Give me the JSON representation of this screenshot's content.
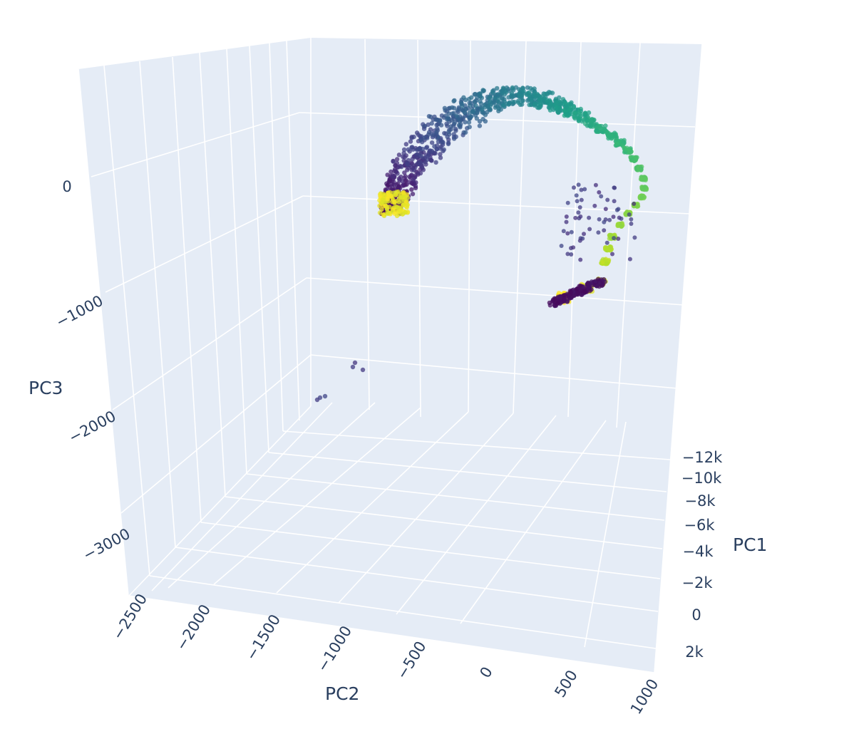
{
  "chart_data": {
    "type": "scatter3d",
    "axes": {
      "x": {
        "title": "PC1",
        "ticks": [
          -12000,
          -10000,
          -8000,
          -6000,
          -4000,
          -2000,
          0,
          2000
        ],
        "tick_labels": [
          "−12k",
          "−10k",
          "−8k",
          "−6k",
          "−4k",
          "−2k",
          "0",
          "2k"
        ]
      },
      "y": {
        "title": "PC2",
        "ticks": [
          -2500,
          -2000,
          -1500,
          -1000,
          -500,
          0,
          500,
          1000
        ],
        "tick_labels": [
          "−2500",
          "−2000",
          "−1500",
          "−1000",
          "−500",
          "0",
          "500",
          "1000"
        ]
      },
      "z": {
        "title": "PC3",
        "ticks": [
          -3000,
          -2000,
          -1000,
          0
        ],
        "tick_labels": [
          "−3000",
          "−2000",
          "−1000",
          "0"
        ]
      }
    },
    "grid": true,
    "legend": false,
    "colorscale": "Viridis",
    "colorscale_colors": [
      "#440154",
      "#482878",
      "#3e4989",
      "#31688e",
      "#26828e",
      "#1f9e89",
      "#35b779",
      "#6ece58",
      "#b5de2b",
      "#fde725"
    ],
    "point_opacity": 0.75,
    "series": [
      {
        "points": [
          [
            1000,
            120,
            -600,
            0.0
          ],
          [
            950,
            300,
            -560,
            0.02
          ],
          [
            850,
            520,
            -500,
            0.04
          ],
          [
            700,
            680,
            -430,
            0.06
          ],
          [
            500,
            720,
            -360,
            0.08
          ],
          [
            250,
            720,
            -300,
            0.1
          ],
          [
            -100,
            760,
            -250,
            0.12
          ],
          [
            -500,
            820,
            -200,
            0.14
          ],
          [
            -1000,
            860,
            -150,
            0.16
          ],
          [
            -1600,
            880,
            -100,
            0.18
          ],
          [
            -2200,
            870,
            -60,
            0.2
          ],
          [
            -2800,
            840,
            -30,
            0.22
          ],
          [
            -3300,
            800,
            0,
            0.24
          ],
          [
            -3700,
            760,
            20,
            0.26
          ],
          [
            -4100,
            720,
            40,
            0.28
          ],
          [
            -4500,
            680,
            60,
            0.3
          ],
          [
            -4900,
            640,
            90,
            0.32
          ],
          [
            -5300,
            600,
            120,
            0.34
          ],
          [
            -5700,
            560,
            160,
            0.36
          ],
          [
            -6100,
            500,
            200,
            0.38
          ],
          [
            -6500,
            420,
            240,
            0.4
          ],
          [
            -6900,
            320,
            270,
            0.42
          ],
          [
            -7300,
            200,
            290,
            0.44
          ],
          [
            -7700,
            60,
            300,
            0.46
          ],
          [
            -8100,
            -100,
            300,
            0.48
          ],
          [
            -8500,
            -280,
            290,
            0.5
          ],
          [
            -8900,
            -460,
            270,
            0.52
          ],
          [
            -9200,
            -640,
            240,
            0.54
          ],
          [
            -9500,
            -820,
            200,
            0.56
          ],
          [
            -9700,
            -1000,
            160,
            0.58
          ],
          [
            -9900,
            -1180,
            110,
            0.6
          ],
          [
            -10000,
            -1350,
            60,
            0.62
          ],
          [
            -10000,
            -1500,
            10,
            0.64
          ],
          [
            -9900,
            -1650,
            -40,
            0.66
          ],
          [
            -9700,
            -1780,
            -80,
            0.68
          ],
          [
            -9400,
            -1900,
            -110,
            0.7
          ],
          [
            -9100,
            -2000,
            -130,
            0.72
          ],
          [
            -8800,
            -2080,
            -150,
            0.74
          ],
          [
            -8500,
            -2140,
            -170,
            0.76
          ],
          [
            -8300,
            -2180,
            -190,
            0.78
          ],
          [
            -8100,
            -2210,
            -210,
            0.8
          ],
          [
            -7900,
            -2230,
            -230,
            0.82
          ],
          [
            -7700,
            -2240,
            -250,
            0.84
          ],
          [
            -7500,
            -2250,
            -270,
            0.86
          ],
          [
            -7300,
            -2260,
            -290,
            0.88
          ],
          [
            -7150,
            -2270,
            -300,
            0.9
          ],
          [
            -7000,
            -2280,
            -310,
            0.93
          ],
          [
            -6900,
            -2290,
            -320,
            0.96
          ],
          [
            -6800,
            -2300,
            -330,
            1.0
          ]
        ]
      },
      {
        "points": [
          [
            -200,
            400,
            -1560,
            0.18
          ],
          [
            -150,
            380,
            -1520,
            0.16
          ],
          [
            -100,
            420,
            -1540,
            0.17
          ],
          [
            -2000,
            650,
            -1700,
            0.2
          ],
          [
            -2050,
            640,
            -1690,
            0.21
          ]
        ]
      }
    ]
  }
}
